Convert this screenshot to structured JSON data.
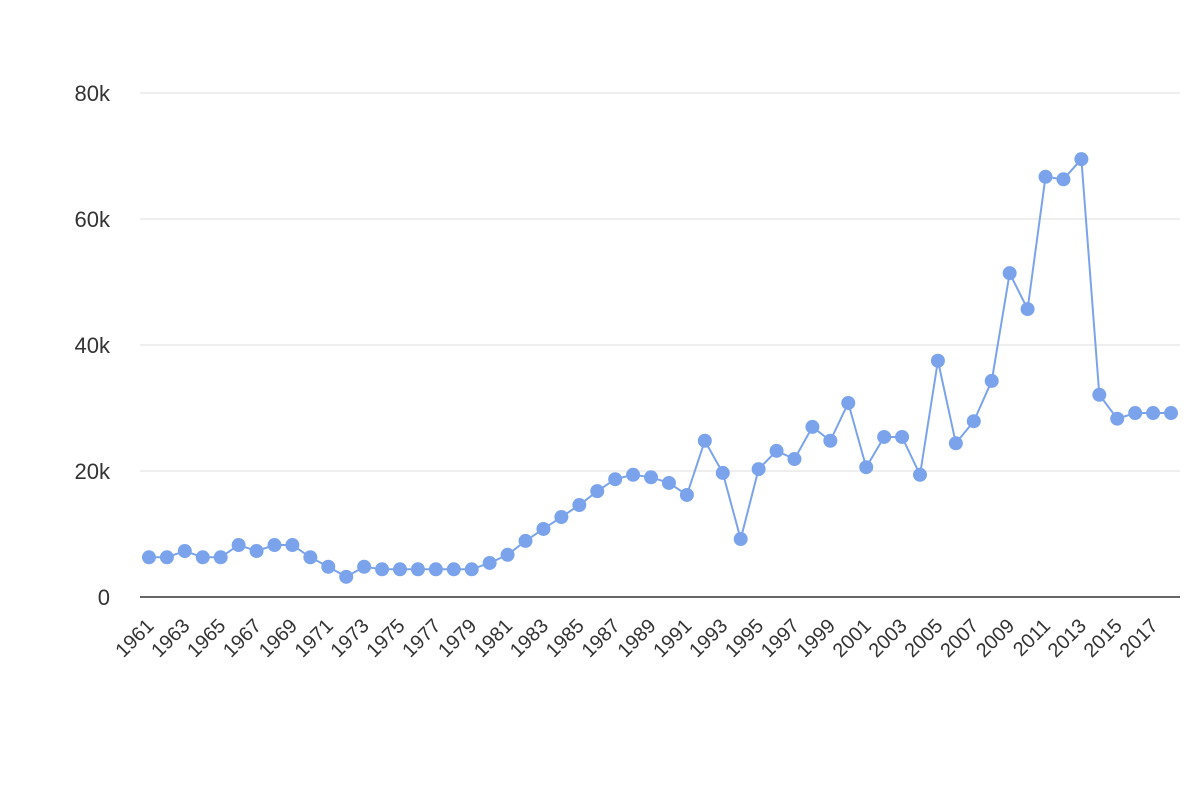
{
  "chart_data": {
    "type": "line",
    "categories": [
      "1961",
      null,
      "1963",
      null,
      "1965",
      null,
      "1967",
      null,
      "1969",
      null,
      "1971",
      null,
      "1973",
      null,
      "1975",
      null,
      "1977",
      null,
      "1979",
      null,
      "1981",
      null,
      "1983",
      null,
      "1985",
      null,
      "1987",
      null,
      "1989",
      null,
      "1991",
      null,
      "1993",
      null,
      "1995",
      null,
      "1997",
      null,
      "1999",
      null,
      "2001",
      null,
      "2003",
      null,
      "2005",
      null,
      "2007",
      null,
      "2009",
      null,
      "2011",
      null,
      "2013",
      null,
      "2015",
      null,
      "2017",
      null
    ],
    "values": [
      6300,
      6300,
      7300,
      6300,
      6300,
      8250,
      7300,
      8250,
      8250,
      6300,
      4800,
      3200,
      4800,
      4400,
      4400,
      4400,
      4400,
      4400,
      4400,
      5400,
      6700,
      8900,
      10800,
      12700,
      14600,
      16800,
      18700,
      19400,
      19000,
      18100,
      16200,
      24800,
      19700,
      9200,
      20300,
      23200,
      21900,
      27000,
      24800,
      30800,
      20600,
      25400,
      25400,
      19400,
      37500,
      24400,
      27900,
      34300,
      51400,
      45700,
      66700,
      66300,
      69500,
      32100,
      28300,
      29200,
      29200,
      29200
    ],
    "color": "#7ba3ec",
    "ylim": [
      0,
      80000
    ],
    "yticks": [
      0,
      {
        "value": 20000,
        "label": "20k"
      },
      {
        "value": 40000,
        "label": "40k"
      },
      {
        "value": 60000,
        "label": "60k"
      },
      {
        "value": 80000,
        "label": "80k"
      }
    ],
    "grid": true
  }
}
